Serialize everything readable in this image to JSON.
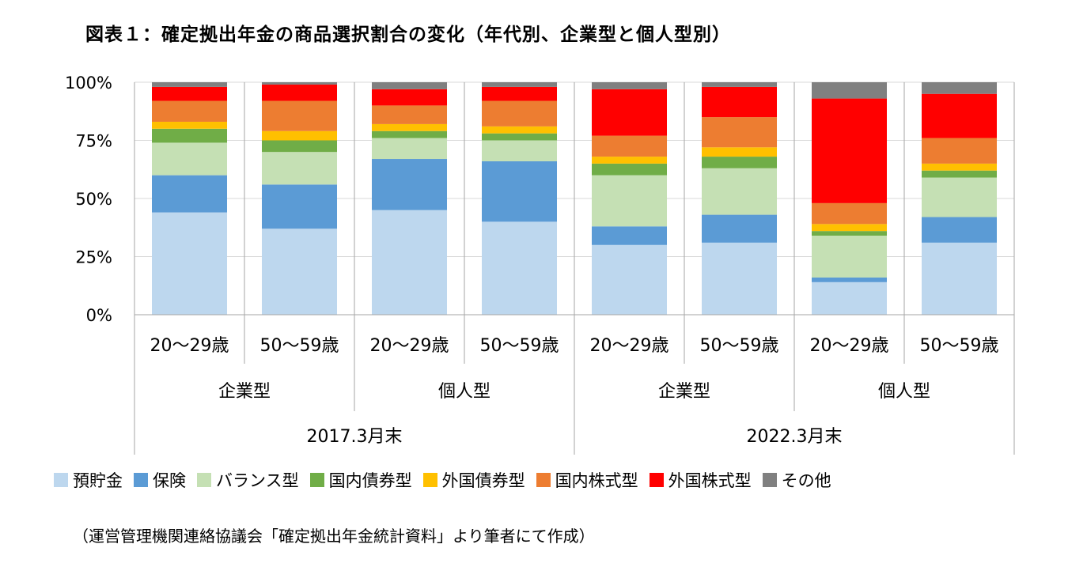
{
  "title": "図表１：確定拠出年金の商品選択割合の変化（年代別、企業型と個人型別）",
  "source": "（運営管理機関連絡協議会「確定拠出年金統計資料」より筆者にて作成）",
  "chart_data": {
    "type": "bar",
    "stacked": true,
    "percent": true,
    "ylim": [
      0,
      100
    ],
    "yticks": [
      "0%",
      "25%",
      "50%",
      "75%",
      "100%"
    ],
    "grid": true,
    "legend_position": "bottom",
    "categories": [
      {
        "age": "20～29歳",
        "plan": "企業型",
        "period": "2017.3月末"
      },
      {
        "age": "50～59歳",
        "plan": "企業型",
        "period": "2017.3月末"
      },
      {
        "age": "20～29歳",
        "plan": "個人型",
        "period": "2017.3月末"
      },
      {
        "age": "50～59歳",
        "plan": "個人型",
        "period": "2017.3月末"
      },
      {
        "age": "20～29歳",
        "plan": "企業型",
        "period": "2022.3月末"
      },
      {
        "age": "50～59歳",
        "plan": "企業型",
        "period": "2022.3月末"
      },
      {
        "age": "20～29歳",
        "plan": "個人型",
        "period": "2022.3月末"
      },
      {
        "age": "50～59歳",
        "plan": "個人型",
        "period": "2022.3月末"
      }
    ],
    "plan_groups": [
      "企業型",
      "個人型",
      "企業型",
      "個人型"
    ],
    "periods": [
      "2017.3月末",
      "2022.3月末"
    ],
    "series": [
      {
        "name": "預貯金",
        "color": "#bdd7ee",
        "values": [
          44,
          37,
          45,
          40,
          30,
          31,
          14,
          31
        ]
      },
      {
        "name": "保険",
        "color": "#5b9bd5",
        "values": [
          16,
          19,
          22,
          26,
          8,
          12,
          2,
          11
        ]
      },
      {
        "name": "バランス型",
        "color": "#c5e0b4",
        "values": [
          14,
          14,
          9,
          9,
          22,
          20,
          18,
          17
        ]
      },
      {
        "name": "国内債券型",
        "color": "#70ad47",
        "values": [
          6,
          5,
          3,
          3,
          5,
          5,
          2,
          3
        ]
      },
      {
        "name": "外国債券型",
        "color": "#ffc000",
        "values": [
          3,
          4,
          3,
          3,
          3,
          4,
          3,
          3
        ]
      },
      {
        "name": "国内株式型",
        "color": "#ed7d31",
        "values": [
          9,
          13,
          8,
          11,
          9,
          13,
          9,
          11
        ]
      },
      {
        "name": "外国株式型",
        "color": "#ff0000",
        "values": [
          6,
          7,
          7,
          6,
          20,
          13,
          45,
          19
        ]
      },
      {
        "name": "その他",
        "color": "#808080",
        "values": [
          2,
          1,
          3,
          2,
          3,
          2,
          7,
          5
        ]
      }
    ]
  }
}
